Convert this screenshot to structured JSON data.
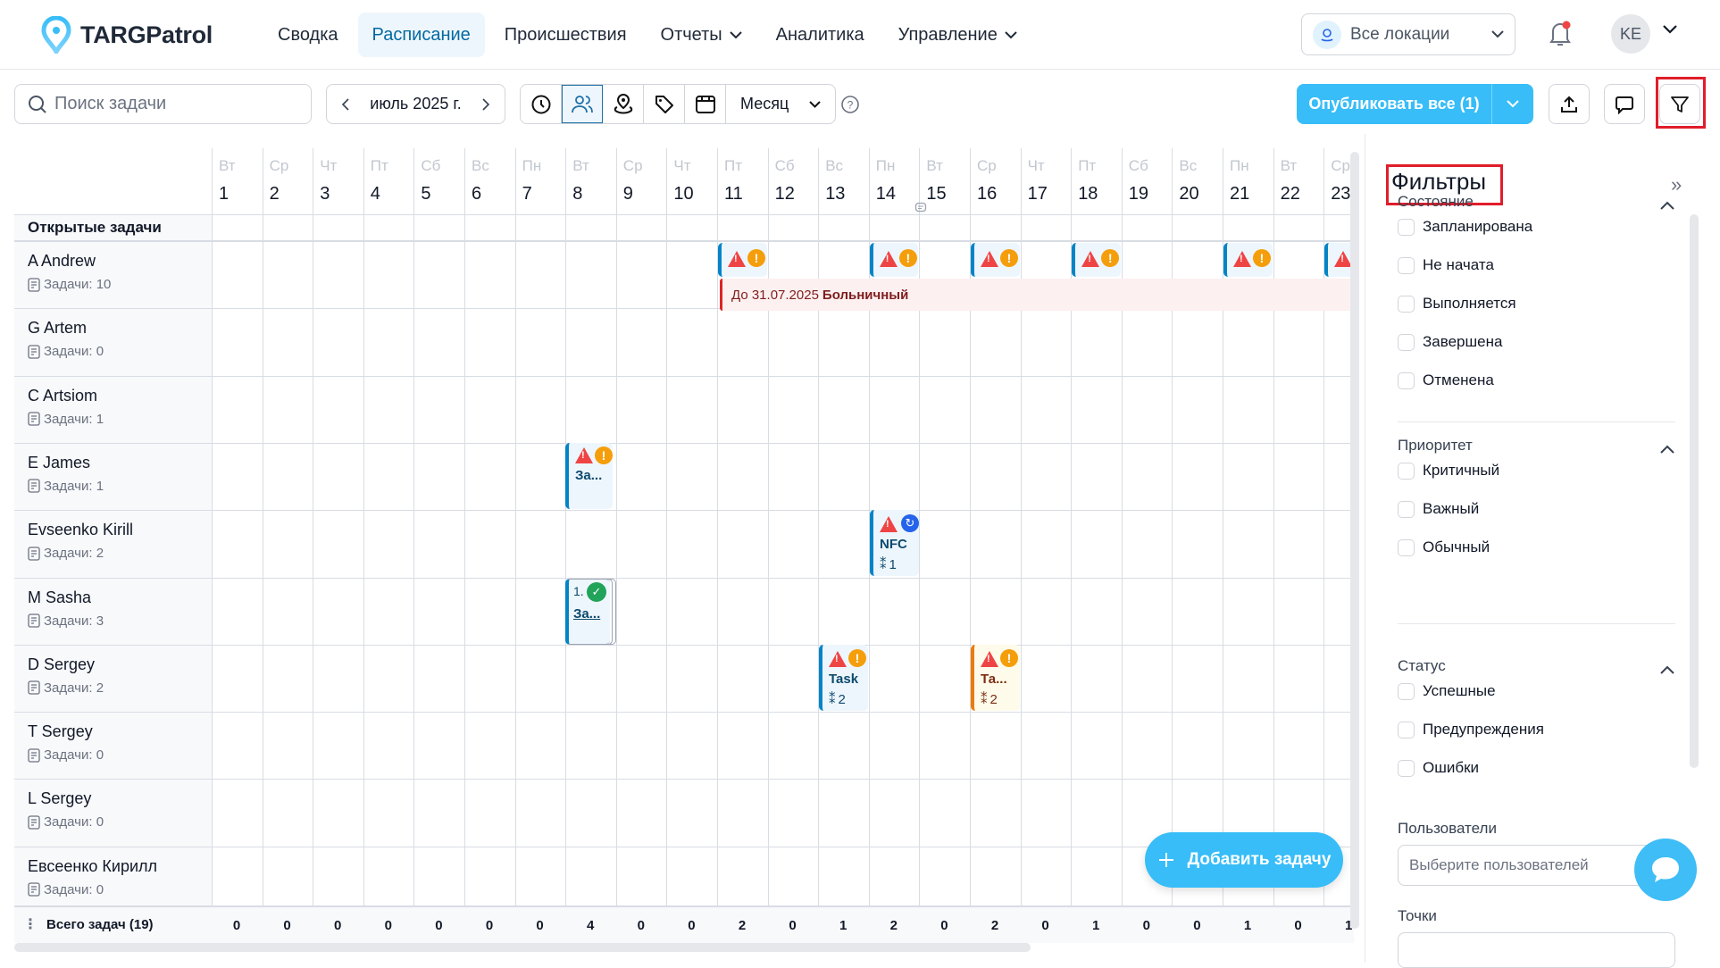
{
  "app": {
    "name": "TARGPatrol",
    "brand_color": "#38bdf8"
  },
  "nav": {
    "items": [
      {
        "label": "Сводка",
        "active": false,
        "dropdown": false
      },
      {
        "label": "Расписание",
        "active": true,
        "dropdown": false
      },
      {
        "label": "Происшествия",
        "active": false,
        "dropdown": false
      },
      {
        "label": "Отчеты",
        "active": false,
        "dropdown": true
      },
      {
        "label": "Аналитика",
        "active": false,
        "dropdown": false
      },
      {
        "label": "Управление",
        "active": false,
        "dropdown": true
      }
    ]
  },
  "header": {
    "location_label": "Все локации",
    "user_initials": "KE",
    "notification_dot": true
  },
  "toolbar": {
    "search_placeholder": "Поиск задачи",
    "month_label": "июль 2025 г.",
    "view_icons": [
      "clock-icon",
      "users-icon",
      "location-pin-icon",
      "tag-icon",
      "calendar-icon"
    ],
    "active_view": "users-icon",
    "period_select": "Месяц",
    "publish_label": "Опубликовать все (1)",
    "icon_buttons": [
      "upload-icon",
      "comment-icon",
      "filter-icon"
    ]
  },
  "schedule": {
    "open_tasks_label": "Открытые задачи",
    "days": [
      {
        "dow": "Вт",
        "num": "1"
      },
      {
        "dow": "Ср",
        "num": "2"
      },
      {
        "dow": "Чт",
        "num": "3"
      },
      {
        "dow": "Пт",
        "num": "4"
      },
      {
        "dow": "Сб",
        "num": "5"
      },
      {
        "dow": "Вс",
        "num": "6"
      },
      {
        "dow": "Пн",
        "num": "7"
      },
      {
        "dow": "Вт",
        "num": "8"
      },
      {
        "dow": "Ср",
        "num": "9"
      },
      {
        "dow": "Чт",
        "num": "10"
      },
      {
        "dow": "Пт",
        "num": "11"
      },
      {
        "dow": "Сб",
        "num": "12"
      },
      {
        "dow": "Вс",
        "num": "13"
      },
      {
        "dow": "Пн",
        "num": "14"
      },
      {
        "dow": "Вт",
        "num": "15"
      },
      {
        "dow": "Ср",
        "num": "16"
      },
      {
        "dow": "Чт",
        "num": "17"
      },
      {
        "dow": "Пт",
        "num": "18"
      },
      {
        "dow": "Сб",
        "num": "19"
      },
      {
        "dow": "Вс",
        "num": "20"
      },
      {
        "dow": "Пн",
        "num": "21"
      },
      {
        "dow": "Вт",
        "num": "22"
      },
      {
        "dow": "Ср",
        "num": "23"
      }
    ],
    "employees": [
      {
        "name": "A Andrew",
        "tasks": "Задачи: 10"
      },
      {
        "name": "G Artem",
        "tasks": "Задачи: 0"
      },
      {
        "name": "C Artsiom",
        "tasks": "Задачи: 1"
      },
      {
        "name": "E James",
        "tasks": "Задачи: 1"
      },
      {
        "name": "Evseenko Kirill",
        "tasks": "Задачи: 2"
      },
      {
        "name": "M Sasha",
        "tasks": "Задачи: 3"
      },
      {
        "name": "D Sergey",
        "tasks": "Задачи: 2"
      },
      {
        "name": "T Sergey",
        "tasks": "Задачи: 0"
      },
      {
        "name": "L Sergey",
        "tasks": "Задачи: 0"
      },
      {
        "name": "Евсеенко Кирилл",
        "tasks": "Задачи: 0"
      }
    ],
    "absence": {
      "prefix": "До 31.07.2025",
      "type": "Больничный"
    },
    "tasks": {
      "james": {
        "title": "За..."
      },
      "kirill": {
        "title": "NFC",
        "count": "1"
      },
      "sasha": {
        "num": "1.",
        "title": "За..."
      },
      "sergey_13": {
        "title": "Task",
        "count": "2"
      },
      "sergey_16": {
        "title": "Та...",
        "count": "2"
      }
    },
    "totals_label": "Всего задач (19)",
    "totals": [
      "0",
      "0",
      "0",
      "0",
      "0",
      "0",
      "0",
      "4",
      "0",
      "0",
      "2",
      "0",
      "1",
      "2",
      "0",
      "2",
      "0",
      "1",
      "0",
      "0",
      "1",
      "0",
      "1"
    ],
    "add_task_label": "Добавить задачу"
  },
  "filters": {
    "title": "Фильтры",
    "sections": [
      {
        "title": "Состояние",
        "options": [
          "Запланирована",
          "Не начата",
          "Выполняется",
          "Завершена",
          "Отменена"
        ]
      },
      {
        "title": "Приоритет",
        "options": [
          "Критичный",
          "Важный",
          "Обычный"
        ]
      },
      {
        "title": "Статус",
        "options": [
          "Успешные",
          "Предупреждения",
          "Ошибки"
        ]
      }
    ],
    "users_label": "Пользователи",
    "users_placeholder": "Выберите пользователей",
    "points_label": "Точки"
  }
}
